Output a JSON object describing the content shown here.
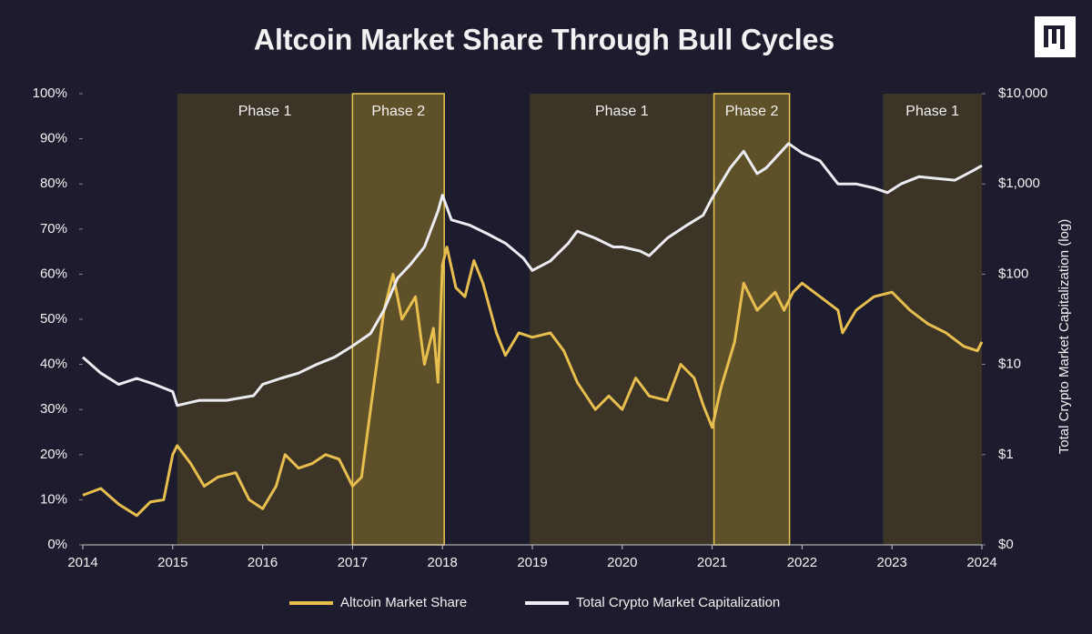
{
  "chart_data": {
    "type": "line",
    "title": "Altcoin Market Share Through Bull Cycles",
    "y2_label": "Total Crypto Market Capitalization (log)",
    "xlim": [
      2014,
      2024
    ],
    "xticks": [
      2014,
      2015,
      2016,
      2017,
      2018,
      2019,
      2020,
      2021,
      2022,
      2023,
      2024
    ],
    "ylim": [
      0,
      100
    ],
    "yticks": [
      {
        "value": 0,
        "label": "0%"
      },
      {
        "value": 10,
        "label": "10%"
      },
      {
        "value": 20,
        "label": "20%"
      },
      {
        "value": 30,
        "label": "30%"
      },
      {
        "value": 40,
        "label": "40%"
      },
      {
        "value": 50,
        "label": "50%"
      },
      {
        "value": 60,
        "label": "60%"
      },
      {
        "value": 70,
        "label": "70%"
      },
      {
        "value": 80,
        "label": "80%"
      },
      {
        "value": 90,
        "label": "90%"
      },
      {
        "value": 100,
        "label": "100%"
      }
    ],
    "y2lim": [
      0.1,
      10000
    ],
    "y2_log": true,
    "y2ticks": [
      {
        "value": 0.1,
        "label": "$0"
      },
      {
        "value": 1,
        "label": "$1"
      },
      {
        "value": 10,
        "label": "$10"
      },
      {
        "value": 100,
        "label": "$100"
      },
      {
        "value": 1000,
        "label": "$1,000"
      },
      {
        "value": 10000,
        "label": "$10,000"
      }
    ],
    "phases": [
      {
        "label": "Phase 1",
        "start": 2015.05,
        "end": 2017.0,
        "color": "#3b3427"
      },
      {
        "label": "Phase 2",
        "start": 2017.0,
        "end": 2018.02,
        "color": "#5e5029",
        "border": "#e8c451"
      },
      {
        "label": "Phase 1",
        "start": 2018.97,
        "end": 2021.02,
        "color": "#3b3427"
      },
      {
        "label": "Phase 2",
        "start": 2021.02,
        "end": 2021.86,
        "color": "#5e5029",
        "border": "#e8c451"
      },
      {
        "label": "Phase 1",
        "start": 2022.9,
        "end": 2024.0,
        "color": "#3b3427"
      }
    ],
    "series": [
      {
        "name": "Altcoin Market Share",
        "color": "#e8bf4f",
        "x": [
          2014.0,
          2014.2,
          2014.4,
          2014.6,
          2014.75,
          2014.9,
          2015.0,
          2015.05,
          2015.2,
          2015.35,
          2015.5,
          2015.7,
          2015.85,
          2016.0,
          2016.15,
          2016.25,
          2016.4,
          2016.55,
          2016.7,
          2016.85,
          2017.0,
          2017.1,
          2017.2,
          2017.35,
          2017.45,
          2017.55,
          2017.7,
          2017.8,
          2017.9,
          2017.95,
          2018.0,
          2018.05,
          2018.15,
          2018.25,
          2018.35,
          2018.45,
          2018.6,
          2018.7,
          2018.85,
          2019.0,
          2019.2,
          2019.35,
          2019.5,
          2019.7,
          2019.85,
          2020.0,
          2020.15,
          2020.3,
          2020.5,
          2020.65,
          2020.8,
          2020.9,
          2021.0,
          2021.1,
          2021.25,
          2021.35,
          2021.5,
          2021.6,
          2021.7,
          2021.8,
          2021.9,
          2022.0,
          2022.2,
          2022.4,
          2022.45,
          2022.6,
          2022.8,
          2023.0,
          2023.2,
          2023.4,
          2023.6,
          2023.8,
          2023.95,
          2024.0
        ],
        "values": [
          11,
          12.5,
          9,
          6.5,
          9.5,
          10,
          20,
          22,
          18,
          13,
          15,
          16,
          10,
          8,
          13,
          20,
          17,
          18,
          20,
          19,
          13,
          15,
          30,
          52,
          60,
          50,
          55,
          40,
          48,
          36,
          62,
          66,
          57,
          55,
          63,
          58,
          47,
          42,
          47,
          46,
          47,
          43,
          36,
          30,
          33,
          30,
          37,
          33,
          32,
          40,
          37,
          31,
          26,
          35,
          45,
          58,
          52,
          54,
          56,
          52,
          56,
          58,
          55,
          52,
          47,
          52,
          55,
          56,
          52,
          49,
          47,
          44,
          43,
          45
        ]
      },
      {
        "name": "Total Crypto Market Capitalization",
        "color": "#ececf2",
        "axis": "y2",
        "x": [
          2014.0,
          2014.2,
          2014.4,
          2014.6,
          2014.8,
          2015.0,
          2015.05,
          2015.3,
          2015.6,
          2015.9,
          2016.0,
          2016.2,
          2016.4,
          2016.6,
          2016.8,
          2017.0,
          2017.2,
          2017.35,
          2017.5,
          2017.65,
          2017.8,
          2017.95,
          2018.0,
          2018.1,
          2018.3,
          2018.5,
          2018.7,
          2018.9,
          2019.0,
          2019.2,
          2019.4,
          2019.5,
          2019.7,
          2019.9,
          2020.0,
          2020.2,
          2020.3,
          2020.5,
          2020.7,
          2020.9,
          2021.0,
          2021.2,
          2021.35,
          2021.5,
          2021.6,
          2021.85,
          2022.0,
          2022.2,
          2022.4,
          2022.6,
          2022.8,
          2022.95,
          2023.1,
          2023.3,
          2023.5,
          2023.7,
          2023.9,
          2024.0
        ],
        "values": [
          12,
          8,
          6,
          7,
          6,
          5,
          3.5,
          4,
          4,
          4.5,
          6,
          7,
          8,
          10,
          12,
          16,
          22,
          40,
          90,
          130,
          200,
          500,
          750,
          400,
          350,
          280,
          220,
          150,
          110,
          140,
          220,
          300,
          250,
          200,
          200,
          180,
          160,
          250,
          340,
          450,
          700,
          1500,
          2300,
          1300,
          1500,
          2800,
          2200,
          1800,
          1000,
          1000,
          900,
          800,
          1000,
          1200,
          1150,
          1100,
          1400,
          1600
        ]
      }
    ]
  }
}
